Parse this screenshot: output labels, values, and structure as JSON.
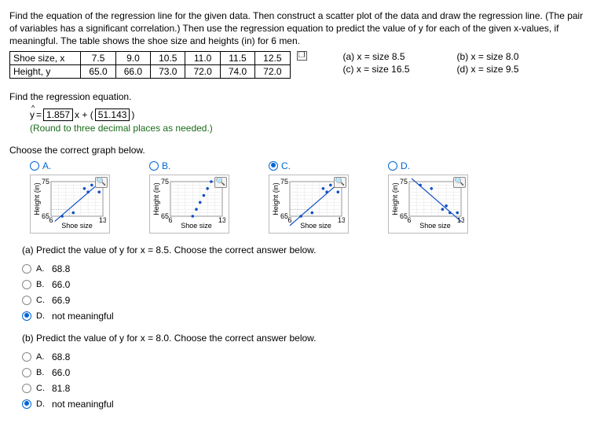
{
  "intro": "Find the equation of the regression line for the given data. Then construct a scatter plot of the data and draw the regression line. (The pair of variables has a significant correlation.) Then use the regression equation to predict the value of y for each of the given x-values, if meaningful. The table shows the shoe size and heights (in) for 6 men.",
  "table": {
    "row1_label": "Shoe size, x",
    "row2_label": "Height, y",
    "x": [
      "7.5",
      "9.0",
      "10.5",
      "11.0",
      "11.5",
      "12.5"
    ],
    "y": [
      "65.0",
      "66.0",
      "73.0",
      "72.0",
      "74.0",
      "72.0"
    ]
  },
  "side": {
    "a": "(a) x = size 8.5",
    "b": "(b) x = size 8.0",
    "c": "(c) x = size 16.5",
    "d": "(d) x = size 9.5"
  },
  "find_eq": "Find the regression equation.",
  "eq": {
    "slope": "1.857",
    "intercept": "51.143"
  },
  "round_hint": "(Round to three decimal places as needed.)",
  "choose_graph": "Choose the correct graph below.",
  "graph_labels": {
    "A": "A.",
    "B": "B.",
    "C": "C.",
    "D": "D."
  },
  "axis": {
    "ylab": "Height (in)",
    "xlab": "Shoe size",
    "ymin": "65",
    "ymax": "75",
    "xmin": "6",
    "xmax": "13"
  },
  "chart": {
    "xlim": [
      6,
      13
    ],
    "ylim": [
      65,
      75
    ],
    "pointsA": [
      [
        7.5,
        65
      ],
      [
        9,
        66
      ],
      [
        10.5,
        73
      ],
      [
        11,
        72
      ],
      [
        11.5,
        74
      ],
      [
        12.5,
        72
      ]
    ],
    "lineA": [
      [
        6.5,
        63.5
      ],
      [
        13,
        75.5
      ]
    ],
    "pointsB": [
      [
        9,
        65
      ],
      [
        9.5,
        67
      ],
      [
        10,
        69
      ],
      [
        10.5,
        71
      ],
      [
        11,
        73
      ],
      [
        11.5,
        75
      ]
    ],
    "pointsC": [
      [
        7.5,
        65
      ],
      [
        9,
        66
      ],
      [
        10.5,
        73
      ],
      [
        11,
        72
      ],
      [
        11.5,
        74
      ],
      [
        12.5,
        72
      ]
    ],
    "lineC": [
      [
        6,
        62.3
      ],
      [
        13,
        75.3
      ]
    ],
    "pointsD": [
      [
        7.5,
        74
      ],
      [
        9,
        73
      ],
      [
        10.5,
        67
      ],
      [
        11,
        68
      ],
      [
        11.5,
        66
      ],
      [
        12.5,
        66
      ]
    ],
    "lineD": [
      [
        6,
        76.5
      ],
      [
        13,
        63.5
      ]
    ],
    "colors": {
      "point": "#1050c8",
      "line": "#1050c8",
      "grid": "#dddddd",
      "axis": "#000000",
      "bg": "#ffffff",
      "tick_font": 9,
      "label_font": 9
    }
  },
  "qa": {
    "prompt": "(a) Predict the value of y for x = 8.5. Choose the correct answer below.",
    "A": "68.8",
    "B": "66.0",
    "C": "66.9",
    "D": "not meaningful",
    "selected": "D"
  },
  "qb": {
    "prompt": "(b) Predict the value of y for x = 8.0. Choose the correct answer below.",
    "A": "68.8",
    "B": "66.0",
    "C": "81.8",
    "D": "not meaningful",
    "selected": "D"
  }
}
